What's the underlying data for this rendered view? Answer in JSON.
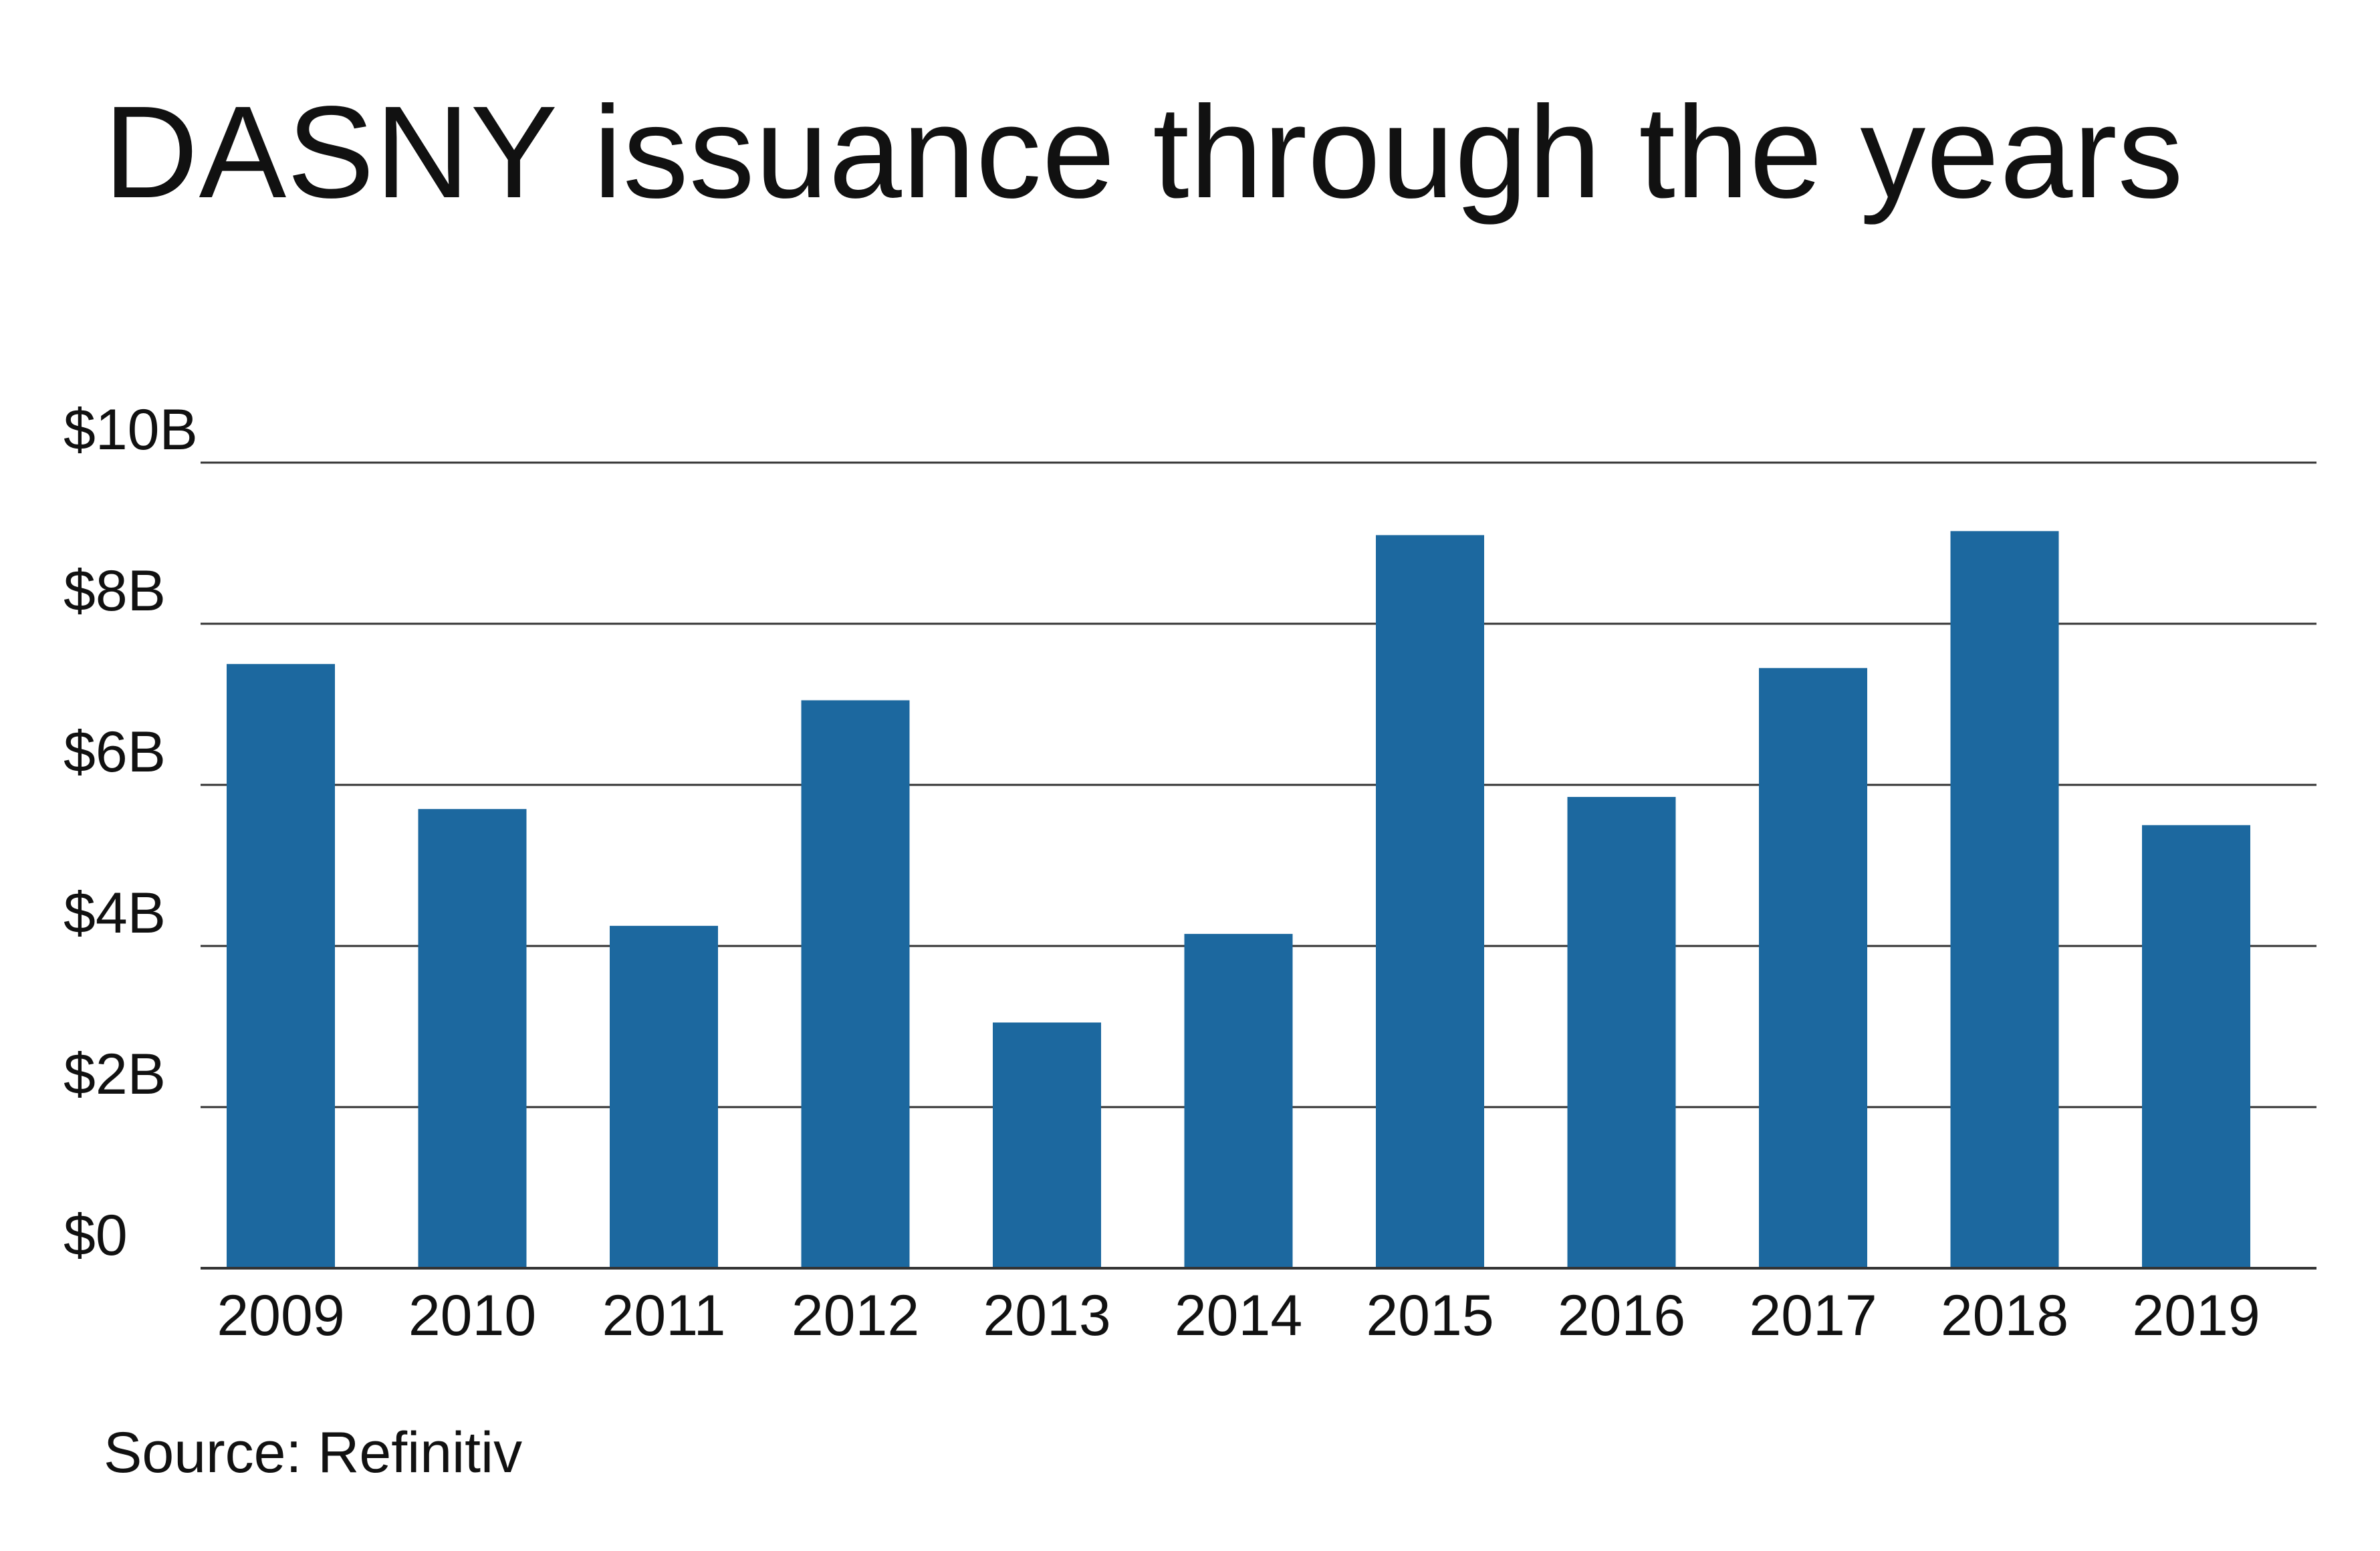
{
  "chart_data": {
    "type": "bar",
    "title": "DASNY issuance through the years",
    "source": "Source: Refinitiv",
    "xlabel": "",
    "ylabel": "",
    "categories": [
      "2009",
      "2010",
      "2011",
      "2012",
      "2013",
      "2014",
      "2015",
      "2016",
      "2017",
      "2018",
      "2019"
    ],
    "values": [
      7.5,
      5.7,
      4.25,
      7.05,
      3.05,
      4.15,
      9.1,
      5.85,
      7.45,
      9.15,
      5.5
    ],
    "unit": "billions of dollars",
    "ylim": [
      0,
      10
    ],
    "yticks": [
      {
        "value": 0,
        "label": "$0"
      },
      {
        "value": 2,
        "label": "$2B"
      },
      {
        "value": 4,
        "label": "$4B"
      },
      {
        "value": 6,
        "label": "$6B"
      },
      {
        "value": 8,
        "label": "$8B"
      },
      {
        "value": 10,
        "label": "$10B"
      }
    ],
    "grid": true,
    "legend": "none",
    "colors": {
      "bar": "#1c689f",
      "grid": "#333333",
      "text": "#111111"
    }
  }
}
